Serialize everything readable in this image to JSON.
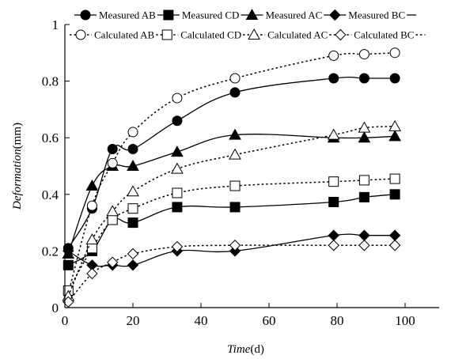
{
  "chart_data": {
    "type": "line",
    "xlabel_main": "Time",
    "xlabel_unit": "(d)",
    "ylabel_main": "Deformation",
    "ylabel_unit": "(mm)",
    "xlim": [
      0,
      110
    ],
    "ylim": [
      0,
      1
    ],
    "xticks": [
      0,
      20,
      40,
      60,
      80,
      100
    ],
    "yticks": [
      0,
      0.2,
      0.4,
      0.6,
      0.8,
      1
    ],
    "ytick_labels": [
      "0",
      "0.2",
      "0.4",
      "0.6",
      "0.8",
      "1"
    ],
    "grid": false,
    "legend_position": "top",
    "series": [
      {
        "name": "Measured AB",
        "marker": "circle-filled",
        "line": "solid",
        "x": [
          1,
          8,
          14,
          20,
          33,
          50,
          79,
          88,
          97
        ],
        "y": [
          0.21,
          0.35,
          0.56,
          0.56,
          0.66,
          0.76,
          0.81,
          0.81,
          0.81
        ]
      },
      {
        "name": "Measured CD",
        "marker": "square-filled",
        "line": "solid",
        "x": [
          1,
          8,
          14,
          20,
          33,
          50,
          79,
          88,
          97
        ],
        "y": [
          0.15,
          0.2,
          0.31,
          0.3,
          0.355,
          0.355,
          0.373,
          0.39,
          0.4
        ]
      },
      {
        "name": "Measured AC",
        "marker": "triangle-filled",
        "line": "solid",
        "x": [
          1,
          8,
          14,
          20,
          33,
          50,
          79,
          88,
          97
        ],
        "y": [
          0.19,
          0.43,
          0.5,
          0.5,
          0.55,
          0.61,
          0.6,
          0.6,
          0.605
        ]
      },
      {
        "name": "Measured BC",
        "marker": "diamond-filled",
        "line": "solid",
        "x": [
          1,
          8,
          14,
          20,
          33,
          50,
          79,
          88,
          97
        ],
        "y": [
          0.2,
          0.15,
          0.15,
          0.15,
          0.2,
          0.2,
          0.255,
          0.255,
          0.255
        ]
      },
      {
        "name": "Calculated AB",
        "marker": "circle-open",
        "line": "dotted",
        "x": [
          1,
          8,
          14,
          20,
          33,
          50,
          79,
          88,
          97
        ],
        "y": [
          0.05,
          0.36,
          0.51,
          0.62,
          0.74,
          0.81,
          0.89,
          0.895,
          0.9
        ]
      },
      {
        "name": "Calculated CD",
        "marker": "square-open",
        "line": "dotted",
        "x": [
          1,
          8,
          14,
          20,
          33,
          50,
          79,
          88,
          97
        ],
        "y": [
          0.06,
          0.21,
          0.31,
          0.35,
          0.405,
          0.43,
          0.445,
          0.45,
          0.455
        ]
      },
      {
        "name": "Calculated AC",
        "marker": "triangle-open",
        "line": "dotted",
        "x": [
          1,
          8,
          14,
          20,
          33,
          50,
          79,
          88,
          97
        ],
        "y": [
          0.04,
          0.24,
          0.34,
          0.41,
          0.49,
          0.54,
          0.61,
          0.635,
          0.64
        ]
      },
      {
        "name": "Calculated BC",
        "marker": "diamond-open",
        "line": "dotted",
        "x": [
          1,
          8,
          14,
          20,
          33,
          50,
          79,
          88,
          97
        ],
        "y": [
          0.02,
          0.12,
          0.16,
          0.19,
          0.215,
          0.22,
          0.22,
          0.22,
          0.22
        ]
      }
    ]
  }
}
